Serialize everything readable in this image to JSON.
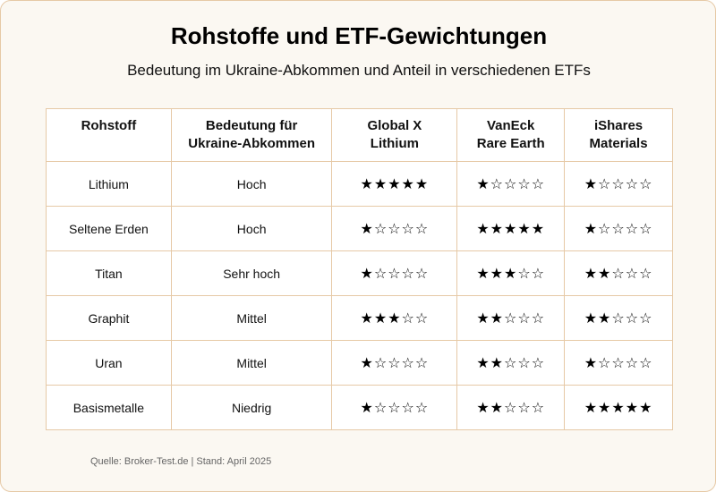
{
  "title": "Rohstoffe und ETF-Gewichtungen",
  "subtitle": "Bedeutung im Ukraine-Abkommen und Anteil in verschiedenen ETFs",
  "table": {
    "headers": [
      {
        "line1": "Rohstoff",
        "line2": ""
      },
      {
        "line1": "Bedeutung für",
        "line2": "Ukraine-Abkommen"
      },
      {
        "line1": "Global X",
        "line2": "Lithium"
      },
      {
        "line1": "VanEck",
        "line2": "Rare Earth"
      },
      {
        "line1": "iShares",
        "line2": "Materials"
      }
    ],
    "rows": [
      {
        "rohstoff": "Lithium",
        "bedeutung": "Hoch",
        "global_x": "★★★★★",
        "vaneck": "★☆☆☆☆",
        "ishares": "★☆☆☆☆"
      },
      {
        "rohstoff": "Seltene Erden",
        "bedeutung": "Hoch",
        "global_x": "★☆☆☆☆",
        "vaneck": "★★★★★",
        "ishares": "★☆☆☆☆"
      },
      {
        "rohstoff": "Titan",
        "bedeutung": "Sehr hoch",
        "global_x": "★☆☆☆☆",
        "vaneck": "★★★☆☆",
        "ishares": "★★☆☆☆"
      },
      {
        "rohstoff": "Graphit",
        "bedeutung": "Mittel",
        "global_x": "★★★☆☆",
        "vaneck": "★★☆☆☆",
        "ishares": "★★☆☆☆"
      },
      {
        "rohstoff": "Uran",
        "bedeutung": "Mittel",
        "global_x": "★☆☆☆☆",
        "vaneck": "★★☆☆☆",
        "ishares": "★☆☆☆☆"
      },
      {
        "rohstoff": "Basismetalle",
        "bedeutung": "Niedrig",
        "global_x": "★☆☆☆☆",
        "vaneck": "★★☆☆☆",
        "ishares": "★★★★★"
      }
    ]
  },
  "source": "Quelle: Broker-Test.de | Stand: April 2025"
}
